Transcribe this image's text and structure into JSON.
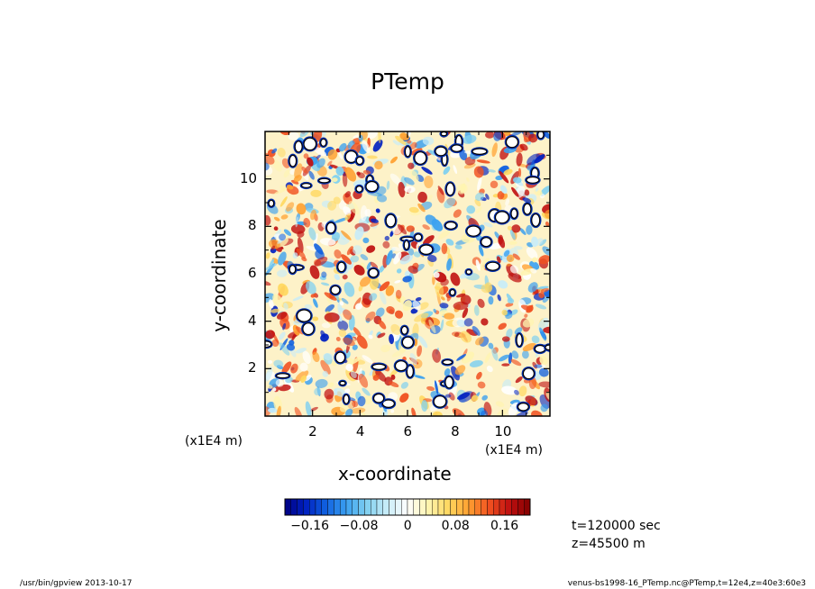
{
  "chart_data": {
    "type": "heatmap",
    "title": "PTemp",
    "xlabel": "x-coordinate",
    "ylabel": "y-coordinate",
    "xscale_label": "(x1E4 m)",
    "yscale_label": "(x1E4 m)",
    "xlim": [
      0,
      12
    ],
    "ylim": [
      0,
      12
    ],
    "xticks": [
      2,
      4,
      6,
      8,
      10
    ],
    "yticks": [
      2,
      4,
      6,
      8,
      10
    ],
    "xtick_labels": [
      "2",
      "4",
      "6",
      "8",
      "10"
    ],
    "ytick_labels": [
      "2",
      "4",
      "6",
      "8",
      "10"
    ],
    "colorbar": {
      "range": [
        -0.2,
        0.2
      ],
      "ticks": [
        -0.16,
        -0.08,
        0,
        0.08,
        0.16
      ],
      "tick_labels": [
        "−0.16",
        "−0.08",
        "0",
        "0.08",
        "0.16"
      ],
      "levels": 40,
      "colormap": [
        "#000080",
        "#0020c0",
        "#1060e0",
        "#3aa0f0",
        "#80d0f0",
        "#c8ecf8",
        "#ffffff",
        "#fff4b0",
        "#ffd860",
        "#ffa030",
        "#f05020",
        "#c01010",
        "#800000"
      ]
    },
    "contour_line_color": "#000000",
    "field_note": "turbulent potential temperature anomaly field; blobs of strong negative values outlined by contours"
  },
  "info": {
    "time": "t=120000 sec",
    "z": "z=45500 m"
  },
  "footer": {
    "left": "/usr/bin/gpview   2013-10-17",
    "right": "venus-bs1998-16_PTemp.nc@PTemp,t=12e4,z=40e3:60e3"
  }
}
